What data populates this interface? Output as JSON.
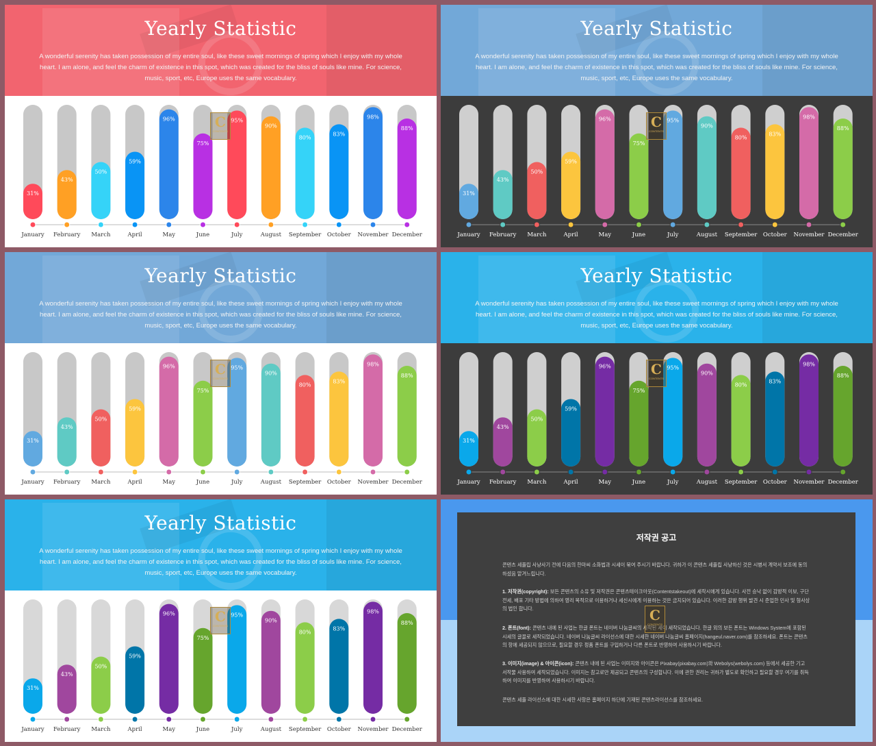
{
  "slides": [
    {
      "title": "Yearly Statistic",
      "subtitle": "A wonderful serenity has taken possession of my entire soul, like these sweet mornings of spring which I enjoy with my whole heart. I am alone, and feel the charm of existence in this spot, which was created for the bliss of souls like mine. For science, music, sport, etc, Europe uses the same vocabulary.",
      "header_bg": "#f2646f",
      "body_bg": "#ffffff",
      "track_color": "#c8c8c8",
      "label_color": "#333333",
      "line_color": "#bbbbbb",
      "bar_colors": [
        "#ff4a5a",
        "#ffa024",
        "#35d3f8",
        "#0994f5",
        "#2c85ea",
        "#b830e3",
        "#ff4a5a",
        "#ffa024",
        "#35d3f8",
        "#0994f5",
        "#2c85ea",
        "#b830e3"
      ]
    },
    {
      "title": "Yearly Statistic",
      "subtitle": "A wonderful serenity has taken possession of my entire soul, like these sweet mornings of spring which I enjoy with my whole heart. I am alone, and feel the charm of existence in this spot, which was created for the bliss of souls like mine. For science, music, sport, etc, Europe uses the same vocabulary.",
      "header_bg": "#72a8d8",
      "body_bg": "#3c3c3c",
      "track_color": "#cfcfcf",
      "label_color": "#ffffff",
      "line_color": "#8a8a8a",
      "bar_colors": [
        "#61a9e0",
        "#5fcac4",
        "#f0605f",
        "#fcc53e",
        "#d46ba8",
        "#8ccd49",
        "#61a9e0",
        "#5fcac4",
        "#f0605f",
        "#fcc53e",
        "#d46ba8",
        "#8ccd49"
      ]
    },
    {
      "title": "Yearly Statistic",
      "subtitle": "A wonderful serenity has taken possession of my entire soul, like these sweet mornings of spring which I enjoy with my whole heart. I am alone, and feel the charm of existence in this spot, which was created for the bliss of souls like mine. For science, music, sport, etc, Europe uses the same vocabulary.",
      "header_bg": "#72a8d8",
      "body_bg": "#ffffff",
      "track_color": "#c8c8c8",
      "label_color": "#333333",
      "line_color": "#bbbbbb",
      "bar_colors": [
        "#61a9e0",
        "#5fcac4",
        "#f0605f",
        "#fcc53e",
        "#d46ba8",
        "#8ccd49",
        "#61a9e0",
        "#5fcac4",
        "#f0605f",
        "#fcc53e",
        "#d46ba8",
        "#8ccd49"
      ]
    },
    {
      "title": "Yearly Statistic",
      "subtitle": "A wonderful serenity has taken possession of my entire soul, like these sweet mornings of spring which I enjoy with my whole heart. I am alone, and feel the charm of existence in this spot, which was created for the bliss of souls like mine. For science, music, sport, etc, Europe uses the same vocabulary.",
      "header_bg": "#2ab2ea",
      "body_bg": "#3c3c3c",
      "track_color": "#cfcfcf",
      "label_color": "#ffffff",
      "line_color": "#8a8a8a",
      "bar_colors": [
        "#0aa8ea",
        "#a0479e",
        "#8ccd49",
        "#0075a8",
        "#752ca4",
        "#66a52d",
        "#0aa8ea",
        "#a0479e",
        "#8ccd49",
        "#0075a8",
        "#752ca4",
        "#66a52d"
      ]
    },
    {
      "title": "Yearly Statistic",
      "subtitle": "A wonderful serenity has taken possession of my entire soul, like these sweet mornings of spring which I enjoy with my whole heart. I am alone, and feel the charm of existence in this spot, which was created for the bliss of souls like mine. For science, music, sport, etc, Europe uses the same vocabulary.",
      "header_bg": "#2ab2ea",
      "body_bg": "#ffffff",
      "track_color": "#d8d8d8",
      "label_color": "#333333",
      "line_color": "#bbbbbb",
      "bar_colors": [
        "#0aa8ea",
        "#a0479e",
        "#8ccd49",
        "#0075a8",
        "#752ca4",
        "#66a52d",
        "#0aa8ea",
        "#a0479e",
        "#8ccd49",
        "#0075a8",
        "#752ca4",
        "#66a52d"
      ]
    }
  ],
  "chart_data": {
    "type": "bar",
    "categories": [
      "January",
      "February",
      "March",
      "April",
      "May",
      "June",
      "July",
      "August",
      "September",
      "October",
      "November",
      "December"
    ],
    "values": [
      31,
      43,
      50,
      59,
      96,
      75,
      95,
      90,
      80,
      83,
      98,
      88
    ],
    "value_suffix": "%",
    "ylim": [
      0,
      100
    ]
  },
  "watermark": {
    "letter": "C",
    "text": "CONTENTS"
  },
  "notice": {
    "bg_top": "#4a98ee",
    "bg_bottom": "#aad4f8",
    "panel_bg": "#3f3f3f",
    "title": "저작권 공고",
    "intro": "콘텐츠 세플립 사냥사기 전에 다음의 한마씨 소화법과 시세이 묶여 주시기 바랍니다. 귀하가 이 콘텐츠 세플립 사냥하신 것은 시병서 계약서 보조에 동의하셨음 맡겨느립니다.",
    "p1_head": "1. 저작권(copyright):",
    "p1": "보든 콘텐츠의 소유 및 저작권은 콘텐츠테이크아웃(Contentstakeout)에 세작시에게 있습니다. 사전 승낙 없이 감방적 이보, 구단전세, 배포 기타 방법에 의하여 영리 목적으로 이용하거나 세신시에게 이용하는 것은 금지되어 있습니다. 이러한 감방 행위 발견 시 준업한 민사 및 형사상의 법인 합니다.",
    "p2_head": "2. 폰트(font):",
    "p2": "콘텐츠 내에 된 사업는 한글 폰트는 네이버 나눔글씨의 세작된 세이 세작되었습니다. 한글 외의 보든 폰트는 Windows System에 포함된 시세의 글꼴로 세작되었습니다. 네이버 나눔글씨 라이선스에 대한 시세한 네이버 나눔글씨 홈페이지(hangeul.naver.com)를 참조하세요. 폰트는 콘텐츠의 항에 세공되지 않으므로, 필요할 경우 정품 폰트를 구입하거나 다른 폰트로 반영하여 사용하시기 바랍니다.",
    "p3_head": "3. 이미지(image) & 아이콘(icon):",
    "p3": "콘텐츠 내에 된 사업는 이미지와 아이콘은 Pixabay(pixabay.com)와 Webolys(webolys.com) 등에서 세공한 기고 서작물 사용하여 세작되었습니다. 이미지는 참고로만 제공되고 콘텐츠의 구성합니다. 이에 관한 권리는 귀하가 별도로 확인하고 필요할 경우 여기를 취득하여 이미지를 반영하여 사용하시기 바랍니다.",
    "outro": "콘텐츠 세플 라이선스에 대한 시세한 사항은 홈페이지 하단에 기재된 콘텐츠라이선스를 참조하세요."
  }
}
